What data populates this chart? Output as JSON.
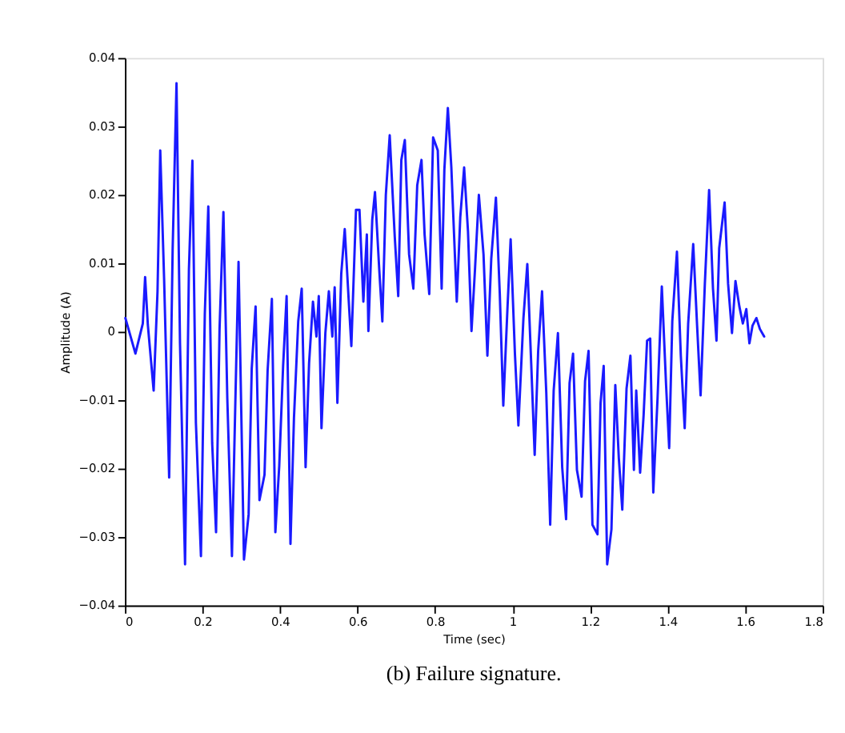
{
  "chart_data": {
    "type": "line",
    "xlabel": "Time (sec)",
    "ylabel": "Amplitude (A)",
    "annotations": [
      "(b) Failure signature."
    ],
    "xlim": [
      0,
      1.8
    ],
    "xticks": [
      0,
      0.2,
      0.4,
      0.6,
      0.8,
      1,
      1.2,
      1.4,
      1.6,
      1.8
    ],
    "ylim": [
      -0.04,
      0.04
    ],
    "yticks": [
      -0.04,
      -0.03,
      -0.02,
      -0.01,
      0,
      0.01,
      0.02,
      0.03,
      0.04
    ],
    "grid": false,
    "marker": "none",
    "line_style": "solid",
    "series": [
      {
        "color": "#1a1aff",
        "x": [
          0.001,
          0.027,
          0.046,
          0.052,
          0.059,
          0.074,
          0.084,
          0.091,
          0.101,
          0.114,
          0.123,
          0.133,
          0.142,
          0.155,
          0.165,
          0.174,
          0.183,
          0.196,
          0.206,
          0.215,
          0.225,
          0.235,
          0.244,
          0.254,
          0.264,
          0.276,
          0.287,
          0.293,
          0.307,
          0.319,
          0.327,
          0.337,
          0.347,
          0.36,
          0.368,
          0.379,
          0.388,
          0.398,
          0.408,
          0.417,
          0.427,
          0.436,
          0.447,
          0.456,
          0.466,
          0.475,
          0.485,
          0.494,
          0.5,
          0.507,
          0.517,
          0.526,
          0.535,
          0.541,
          0.548,
          0.558,
          0.567,
          0.577,
          0.584,
          0.596,
          0.605,
          0.615,
          0.624,
          0.628,
          0.638,
          0.645,
          0.656,
          0.664,
          0.673,
          0.683,
          0.696,
          0.705,
          0.713,
          0.722,
          0.733,
          0.744,
          0.754,
          0.765,
          0.773,
          0.785,
          0.795,
          0.807,
          0.817,
          0.824,
          0.833,
          0.842,
          0.856,
          0.865,
          0.875,
          0.885,
          0.894,
          0.903,
          0.913,
          0.925,
          0.935,
          0.945,
          0.957,
          0.967,
          0.976,
          0.987,
          0.995,
          1.006,
          1.015,
          1.028,
          1.038,
          1.048,
          1.057,
          1.066,
          1.076,
          1.087,
          1.097,
          1.106,
          1.117,
          1.128,
          1.138,
          1.147,
          1.156,
          1.166,
          1.178,
          1.187,
          1.196,
          1.206,
          1.219,
          1.227,
          1.235,
          1.244,
          1.255,
          1.265,
          1.274,
          1.283,
          1.294,
          1.304,
          1.313,
          1.319,
          1.329,
          1.338,
          1.347,
          1.355,
          1.363,
          1.374,
          1.385,
          1.396,
          1.404,
          1.412,
          1.424,
          1.434,
          1.444,
          1.453,
          1.466,
          1.476,
          1.485,
          1.496,
          1.507,
          1.517,
          1.526,
          1.533,
          1.547,
          1.556,
          1.566,
          1.575,
          1.585,
          1.594,
          1.603,
          1.611,
          1.619,
          1.629,
          1.638,
          1.649
        ],
        "values": [
          0.002,
          -0.0032,
          0.0012,
          0.008,
          0.001,
          -0.0086,
          0.0059,
          0.0265,
          0.0077,
          -0.0213,
          0.012,
          0.0363,
          -0.0017,
          -0.034,
          0.0091,
          0.025,
          -0.0133,
          -0.0328,
          0.0026,
          0.0183,
          -0.0163,
          -0.0293,
          0.0004,
          0.0175,
          -0.0097,
          -0.0328,
          -0.0046,
          0.0102,
          -0.0333,
          -0.0267,
          -0.0054,
          0.0037,
          -0.0246,
          -0.0209,
          -0.0057,
          0.0048,
          -0.0293,
          -0.0196,
          -0.005,
          0.0052,
          -0.031,
          -0.0126,
          0.0015,
          0.0063,
          -0.0198,
          -0.0046,
          0.0044,
          -0.0007,
          0.0052,
          -0.0141,
          -0.0002,
          0.0059,
          -0.0007,
          0.0065,
          -0.0104,
          0.0085,
          0.015,
          0.0048,
          -0.0021,
          0.0178,
          0.0178,
          0.0044,
          0.0142,
          0.0001,
          0.0164,
          0.0204,
          0.0091,
          0.0015,
          0.02,
          0.0287,
          0.0139,
          0.0052,
          0.0251,
          0.028,
          0.0113,
          0.0063,
          0.0214,
          0.0251,
          0.0142,
          0.0055,
          0.0284,
          0.0265,
          0.0063,
          0.0237,
          0.0327,
          0.024,
          0.0044,
          0.0167,
          0.024,
          0.0146,
          0.0001,
          0.0091,
          0.02,
          0.0113,
          -0.0035,
          0.0107,
          0.0196,
          0.0055,
          -0.0108,
          0.0037,
          0.0135,
          -0.0032,
          -0.0137,
          0.002,
          0.0099,
          -0.0046,
          -0.018,
          -0.0028,
          0.0059,
          -0.009,
          -0.0282,
          -0.0086,
          -0.0002,
          -0.0198,
          -0.0274,
          -0.0075,
          -0.0032,
          -0.0202,
          -0.0241,
          -0.0072,
          -0.0028,
          -0.0282,
          -0.0296,
          -0.0104,
          -0.005,
          -0.034,
          -0.0289,
          -0.0078,
          -0.0184,
          -0.026,
          -0.0083,
          -0.0035,
          -0.0202,
          -0.0086,
          -0.0206,
          -0.0122,
          -0.0013,
          -0.001,
          -0.0235,
          -0.0097,
          0.0066,
          -0.0078,
          -0.017,
          0.0015,
          0.0117,
          -0.0035,
          -0.0141,
          0.0012,
          0.0128,
          0.0009,
          -0.0093,
          0.007,
          0.0207,
          0.0063,
          -0.0013,
          0.0122,
          0.0189,
          0.007,
          -0.0002,
          0.0074,
          0.0037,
          0.0012,
          0.0033,
          -0.0017,
          0.0009,
          0.002,
          0.0004,
          -0.0007
        ]
      }
    ]
  }
}
